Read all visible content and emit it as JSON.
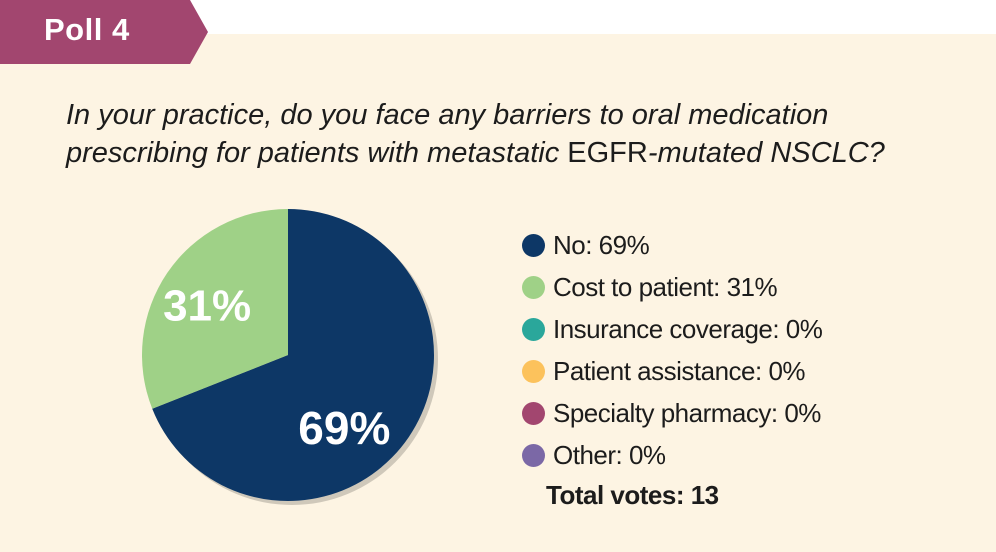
{
  "header": {
    "poll_label": "Poll 4",
    "tab_color": "#a2466f"
  },
  "question": {
    "part1": "In your practice, do you face any barriers to oral medication prescribing for patients with metastatic ",
    "part2": "EGFR",
    "part3": "-mutated NSCLC?"
  },
  "chart_data": {
    "type": "pie",
    "title": "In your practice, do you face any barriers to oral medication prescribing for patients with metastatic EGFR-mutated NSCLC?",
    "slices": [
      {
        "label": "No",
        "value": 69,
        "color": "#0d3766",
        "display": "69%",
        "legend": "No: 69%"
      },
      {
        "label": "Cost to patient",
        "value": 31,
        "color": "#9fd187",
        "display": "31%",
        "legend": "Cost to patient: 31%"
      },
      {
        "label": "Insurance coverage",
        "value": 0,
        "color": "#2aa79b",
        "display": "0%",
        "legend": "Insurance coverage: 0%"
      },
      {
        "label": "Patient assistance",
        "value": 0,
        "color": "#fcc25c",
        "display": "0%",
        "legend": "Patient assistance: 0%"
      },
      {
        "label": "Specialty pharmacy",
        "value": 0,
        "color": "#a2466f",
        "display": "0%",
        "legend": "Specialty pharmacy: 0%"
      },
      {
        "label": "Other",
        "value": 0,
        "color": "#7b68a6",
        "display": "0%",
        "legend": "Other: 0%"
      }
    ],
    "legend_position": "right",
    "total_votes_label": "Total votes: 13"
  }
}
